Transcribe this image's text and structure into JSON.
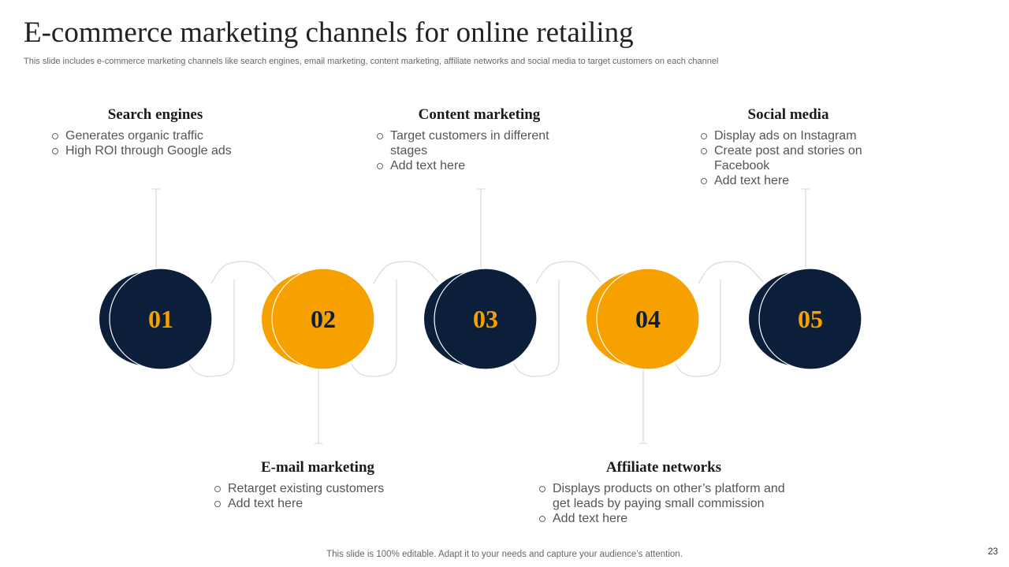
{
  "slide": {
    "title": "E-commerce marketing channels for online retailing",
    "subtitle": "This slide includes e-commerce marketing channels like search engines, email marketing, content marketing, affiliate networks and social media to target customers on each channel",
    "footer": "This slide is 100% editable. Adapt it to your needs and capture your audience’s attention.",
    "page_number": "23"
  },
  "colors": {
    "navy": "#0b1f3a",
    "orange": "#f7a100",
    "connector": "#d9d9d9"
  },
  "steps": [
    {
      "number": "01",
      "heading": "Search engines",
      "position": "top",
      "color": "navy",
      "bullets": [
        "Generates organic traffic",
        "High ROI through  Google ads"
      ]
    },
    {
      "number": "02",
      "heading": "E-mail marketing",
      "position": "bottom",
      "color": "orange",
      "bullets": [
        "Retarget existing customers",
        "Add text here"
      ]
    },
    {
      "number": "03",
      "heading": "Content marketing",
      "position": "top",
      "color": "navy",
      "bullets": [
        "Target customers in different stages",
        "Add text here"
      ]
    },
    {
      "number": "04",
      "heading": "Affiliate networks",
      "position": "bottom",
      "color": "orange",
      "bullets": [
        "Displays products on other’s platform and get leads by paying small commission",
        "Add text here"
      ]
    },
    {
      "number": "05",
      "heading": "Social media",
      "position": "top",
      "color": "navy",
      "bullets": [
        "Display ads on Instagram",
        "Create post and stories on Facebook",
        "Add text here"
      ]
    }
  ]
}
